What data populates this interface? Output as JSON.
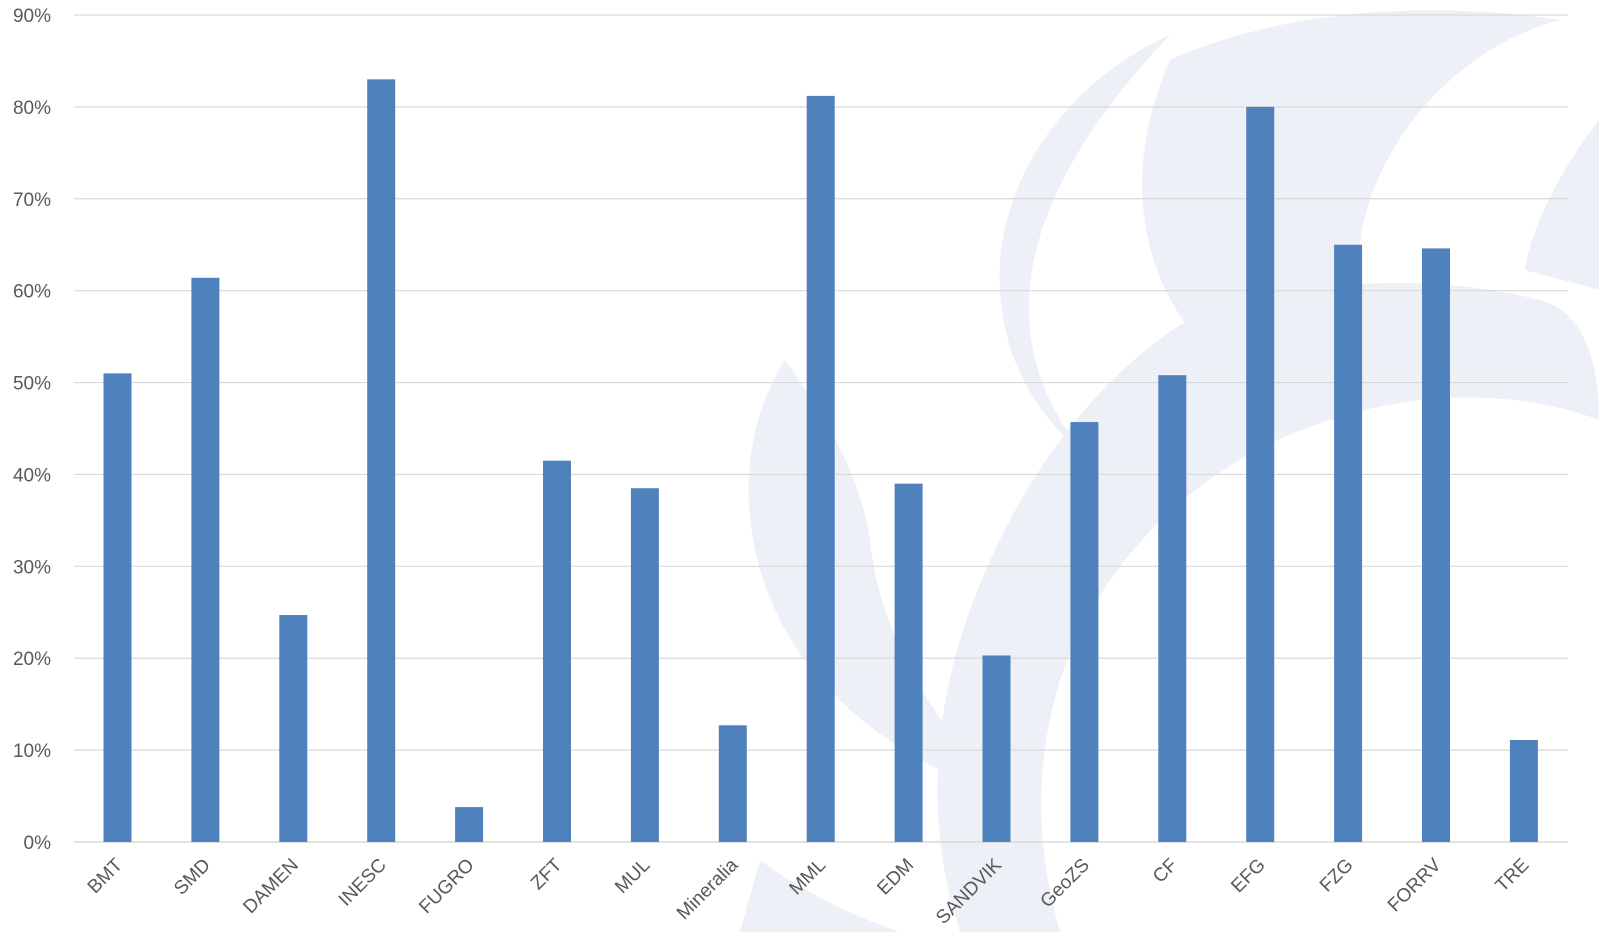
{
  "chart_data": {
    "type": "bar",
    "categories": [
      "BMT",
      "SMD",
      "DAMEN",
      "INESC",
      "FUGRO",
      "ZFT",
      "MUL",
      "Mineralia",
      "MML",
      "EDM",
      "SANDVIK",
      "GeoZS",
      "CF",
      "EFG",
      "FZG",
      "FORRV",
      "TRE"
    ],
    "values": [
      51,
      61.4,
      24.7,
      83,
      3.8,
      41.5,
      38.5,
      12.7,
      81.2,
      39,
      20.3,
      45.7,
      50.8,
      80,
      65,
      64.6,
      11.1
    ],
    "value_format": "percent",
    "ylim": [
      0,
      90
    ],
    "yticks": [
      "0%",
      "10%",
      "20%",
      "30%",
      "40%",
      "50%",
      "60%",
      "70%",
      "80%",
      "90%"
    ],
    "title": "",
    "xlabel": "",
    "ylabel": "",
    "grid": true,
    "bar_color": "#4f81bd",
    "grid_color": "#d9d9d9",
    "watermark_color": "#eef0f7"
  }
}
